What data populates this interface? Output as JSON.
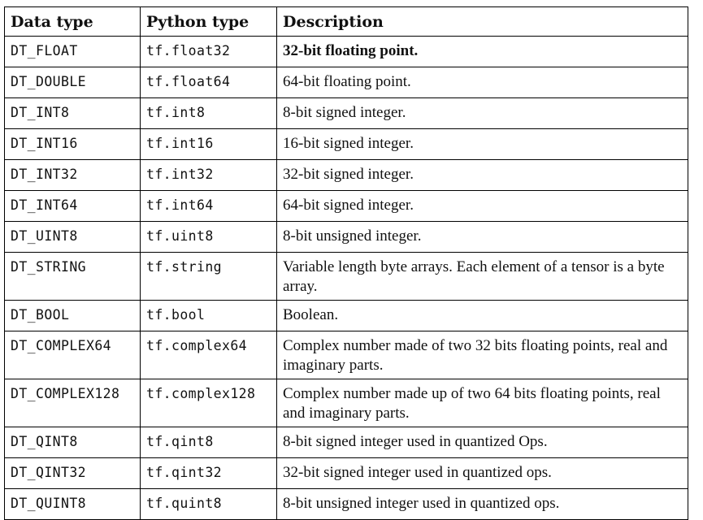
{
  "table": {
    "headers": [
      "Data type",
      "Python type",
      "Description"
    ],
    "rows": [
      {
        "data_type": "DT_FLOAT",
        "python_type": "tf.float32",
        "description": "32-bit floating point.",
        "bold": true
      },
      {
        "data_type": "DT_DOUBLE",
        "python_type": "tf.float64",
        "description": "64-bit floating point."
      },
      {
        "data_type": "DT_INT8",
        "python_type": "tf.int8",
        "description": "8-bit signed integer."
      },
      {
        "data_type": "DT_INT16",
        "python_type": "tf.int16",
        "description": "16-bit signed integer."
      },
      {
        "data_type": "DT_INT32",
        "python_type": "tf.int32",
        "description": "32-bit signed integer."
      },
      {
        "data_type": "DT_INT64",
        "python_type": "tf.int64",
        "description": "64-bit signed integer."
      },
      {
        "data_type": "DT_UINT8",
        "python_type": "tf.uint8",
        "description": "8-bit unsigned integer."
      },
      {
        "data_type": "DT_STRING",
        "python_type": "tf.string",
        "description": "Variable length byte arrays. Each element of a tensor is a byte array."
      },
      {
        "data_type": "DT_BOOL",
        "python_type": "tf.bool",
        "description": "Boolean."
      },
      {
        "data_type": "DT_COMPLEX64",
        "python_type": "tf.complex64",
        "description": "Complex number made of two 32 bits floating points, real and imaginary parts."
      },
      {
        "data_type": "DT_COMPLEX128",
        "python_type": "tf.complex128",
        "description": "Complex number made up of two 64 bits floating points, real and imaginary parts."
      },
      {
        "data_type": "DT_QINT8",
        "python_type": "tf.qint8",
        "description": "8-bit signed integer used in quantized Ops."
      },
      {
        "data_type": "DT_QINT32",
        "python_type": "tf.qint32",
        "description": "32-bit signed integer used in quantized ops."
      },
      {
        "data_type": "DT_QUINT8",
        "python_type": "tf.quint8",
        "description": "8-bit unsigned integer used in quantized ops."
      }
    ]
  }
}
